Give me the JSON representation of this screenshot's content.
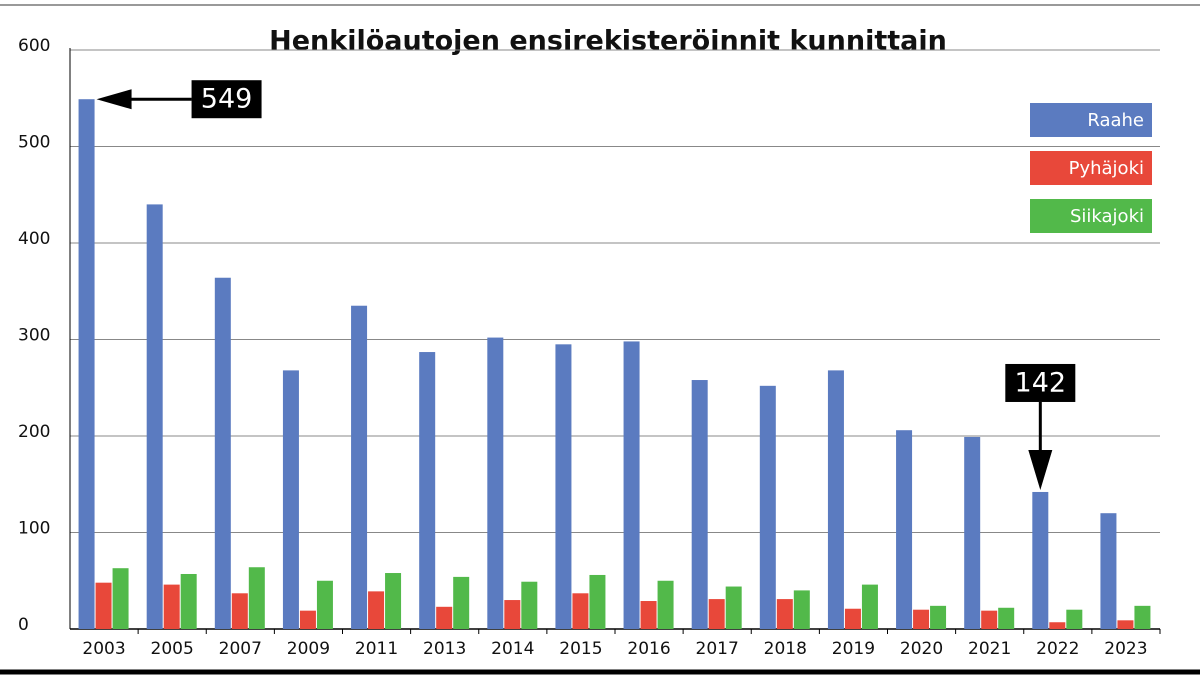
{
  "chart_data": {
    "type": "bar",
    "title": "Henkilöautojen ensirekisteröinnit kunnittain",
    "categories": [
      "2003",
      "2005",
      "2007",
      "2009",
      "2011",
      "2013",
      "2014",
      "2015",
      "2016",
      "2017",
      "2018",
      "2019",
      "2020",
      "2021",
      "2022",
      "2023"
    ],
    "series": [
      {
        "name": "Raahe",
        "color": "#5b7bc0",
        "values": [
          549,
          440,
          364,
          268,
          335,
          287,
          302,
          295,
          298,
          258,
          252,
          268,
          206,
          199,
          142,
          120
        ],
        "value_labels": [
          "549",
          null,
          null,
          null,
          null,
          null,
          null,
          null,
          null,
          null,
          null,
          null,
          null,
          null,
          "142",
          null
        ]
      },
      {
        "name": "Pyhäjoki",
        "color": "#e8483a",
        "values": [
          48,
          46,
          37,
          19,
          39,
          23,
          30,
          37,
          29,
          31,
          31,
          21,
          20,
          19,
          7,
          9
        ]
      },
      {
        "name": "Siikajoki",
        "color": "#52b94a",
        "values": [
          63,
          57,
          64,
          50,
          58,
          54,
          49,
          56,
          50,
          44,
          40,
          46,
          24,
          22,
          20,
          24
        ]
      }
    ],
    "ylim": [
      0,
      600
    ],
    "yticks": [
      0,
      100,
      200,
      300,
      400,
      500,
      600
    ],
    "grid": true,
    "legend": "top-right"
  }
}
